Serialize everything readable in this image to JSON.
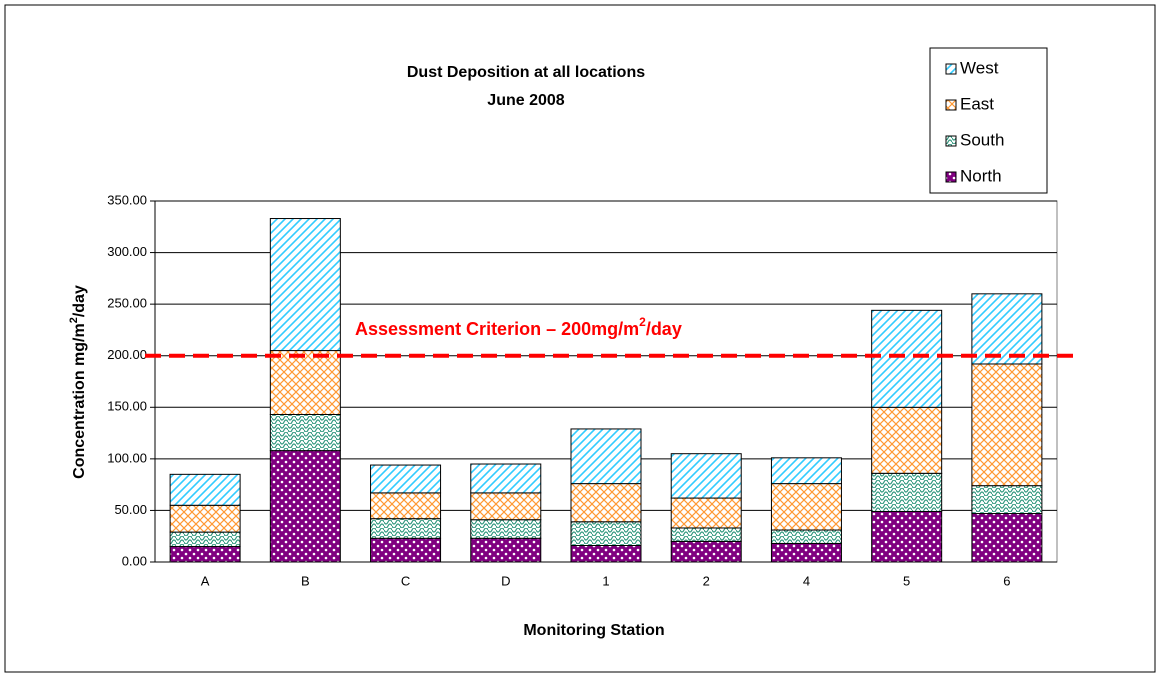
{
  "chart_data": {
    "type": "stacked_bar",
    "title": [
      "Dust Deposition at all locations",
      "June 2008"
    ],
    "xlabel": "Monitoring Station",
    "ylabel": [
      "Concentration mg/m",
      "2",
      "/day"
    ],
    "categories": [
      "A",
      "B",
      "C",
      "D",
      "1",
      "2",
      "4",
      "5",
      "6"
    ],
    "series": [
      {
        "name": "North",
        "color": "#800080",
        "values": [
          15,
          108,
          23,
          23,
          16,
          20,
          18,
          49,
          47
        ]
      },
      {
        "name": "South",
        "color": "#339980",
        "values": [
          14,
          35,
          19,
          18,
          23,
          13,
          13,
          37,
          27
        ]
      },
      {
        "name": "East",
        "color": "#ff9933",
        "values": [
          26,
          62,
          25,
          26,
          37,
          29,
          45,
          64,
          118
        ]
      },
      {
        "name": "West",
        "color": "#33ccff",
        "values": [
          30,
          128,
          27,
          28,
          53,
          43,
          25,
          94,
          68
        ]
      }
    ],
    "ylim": [
      0,
      350
    ],
    "yticks": [
      {
        "value": 0,
        "label": "0.00"
      },
      {
        "value": 50,
        "label": "50.00"
      },
      {
        "value": 100,
        "label": "100.00"
      },
      {
        "value": 150,
        "label": "150.00"
      },
      {
        "value": 200,
        "label": "200.00"
      },
      {
        "value": 250,
        "label": "250.00"
      },
      {
        "value": 300,
        "label": "300.00"
      },
      {
        "value": 350,
        "label": "350.00"
      }
    ],
    "grid": true,
    "legend": "top-right",
    "criterion": {
      "value": 200,
      "label": [
        "Assessment Criterion – 200mg/m",
        "2",
        "/day"
      ],
      "color": "#ff0000"
    }
  }
}
